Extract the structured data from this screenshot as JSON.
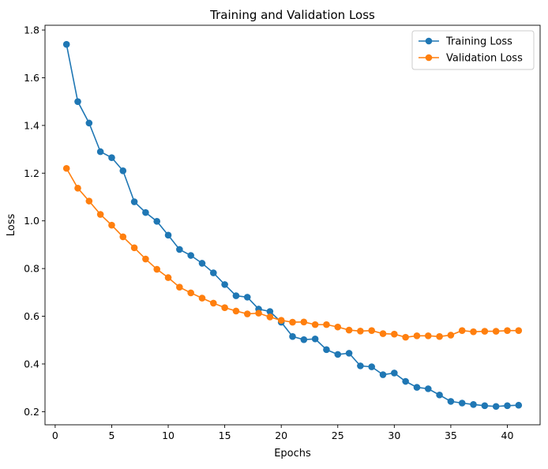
{
  "chart_data": {
    "type": "line",
    "title": "Training and Validation Loss",
    "xlabel": "Epochs",
    "ylabel": "Loss",
    "xlim": [
      -0.9,
      42.9
    ],
    "ylim": [
      0.145,
      1.82
    ],
    "xticks": [
      0,
      5,
      10,
      15,
      20,
      25,
      30,
      35,
      40
    ],
    "xtick_labels": [
      "0",
      "5",
      "10",
      "15",
      "20",
      "25",
      "30",
      "35",
      "40"
    ],
    "yticks": [
      0.2,
      0.4,
      0.6,
      0.8,
      1.0,
      1.2,
      1.4,
      1.6,
      1.8
    ],
    "ytick_labels": [
      "0.2",
      "0.4",
      "0.6",
      "0.8",
      "1.0",
      "1.2",
      "1.4",
      "1.6",
      "1.8"
    ],
    "grid": false,
    "legend_position": "top-right",
    "x": [
      1,
      2,
      3,
      4,
      5,
      6,
      7,
      8,
      9,
      10,
      11,
      12,
      13,
      14,
      15,
      16,
      17,
      18,
      19,
      20,
      21,
      22,
      23,
      24,
      25,
      26,
      27,
      28,
      29,
      30,
      31,
      32,
      33,
      34,
      35,
      36,
      37,
      38,
      39,
      40,
      41
    ],
    "series": [
      {
        "name": "Training Loss",
        "color": "#1f77b4",
        "marker": "circle",
        "values": [
          1.74,
          1.5,
          1.41,
          1.29,
          1.265,
          1.21,
          1.08,
          1.035,
          0.998,
          0.94,
          0.88,
          0.855,
          0.822,
          0.782,
          0.733,
          0.686,
          0.68,
          0.63,
          0.62,
          0.575,
          0.515,
          0.502,
          0.505,
          0.46,
          0.44,
          0.445,
          0.392,
          0.388,
          0.355,
          0.362,
          0.327,
          0.302,
          0.296,
          0.27,
          0.243,
          0.236,
          0.23,
          0.225,
          0.222,
          0.225,
          0.227
        ]
      },
      {
        "name": "Validation Loss",
        "color": "#ff7f0e",
        "marker": "circle",
        "values": [
          1.22,
          1.137,
          1.083,
          1.027,
          0.982,
          0.933,
          0.887,
          0.84,
          0.797,
          0.762,
          0.722,
          0.698,
          0.676,
          0.655,
          0.636,
          0.622,
          0.61,
          0.613,
          0.597,
          0.583,
          0.575,
          0.576,
          0.565,
          0.565,
          0.555,
          0.542,
          0.538,
          0.54,
          0.527,
          0.525,
          0.512,
          0.518,
          0.518,
          0.515,
          0.521,
          0.54,
          0.535,
          0.537,
          0.537,
          0.54,
          0.54
        ]
      }
    ]
  }
}
